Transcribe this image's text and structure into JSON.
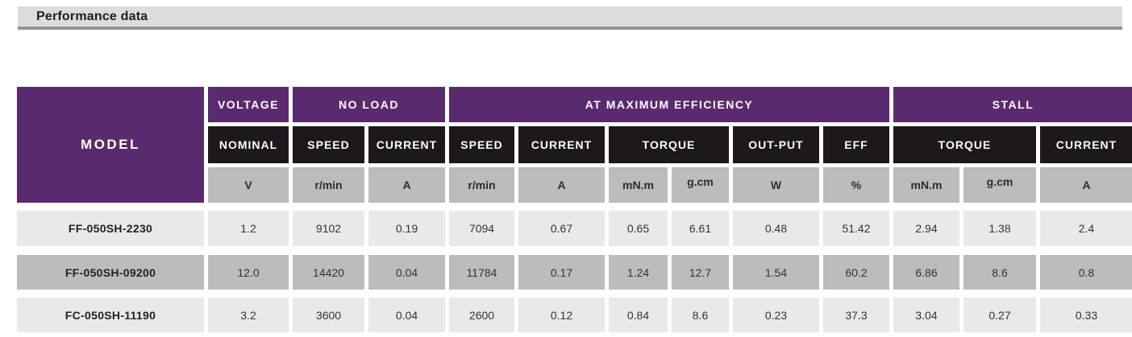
{
  "page": {
    "title": "Performance data"
  },
  "colors": {
    "header_purple": "#5a2a6e",
    "header_black": "#1c181c",
    "unit_gray": "#bcbcbc",
    "row_light": "#e9e9e9",
    "row_mid": "#bcbcbc",
    "title_bar_bg": "#dcdcdc",
    "title_bar_rule": "#8e949e"
  },
  "table": {
    "model_header": "MODEL",
    "groups": {
      "voltage": "VOLTAGE",
      "no_load": "NO LOAD",
      "max_efficiency": "AT MAXIMUM EFFICIENCY",
      "stall": "STALL"
    },
    "subheaders": {
      "nominal": "NOMINAL",
      "speed_noload": "SPEED",
      "current_noload": "CURRENT",
      "speed_maxeff": "SPEED",
      "current_maxeff": "CURRENT",
      "torque_maxeff": "TORQUE",
      "output": "OUT-PUT",
      "eff": "EFF",
      "torque_stall": "TORQUE",
      "current_stall": "CURRENT"
    },
    "units": [
      "V",
      "r/min",
      "A",
      "r/min",
      "A",
      "mN.m",
      "g.cm",
      "W",
      "%",
      "mN.m",
      "g.cm",
      "A"
    ],
    "rows": [
      {
        "model": "FF-050SH-2230",
        "values": [
          "1.2",
          "9102",
          "0.19",
          "7094",
          "0.67",
          "0.65",
          "6.61",
          "0.48",
          "51.42",
          "2.94",
          "1.38",
          "2.4"
        ]
      },
      {
        "model": "FF-050SH-09200",
        "values": [
          "12.0",
          "14420",
          "0.04",
          "11784",
          "0.17",
          "1.24",
          "12.7",
          "1.54",
          "60.2",
          "6.86",
          "8.6",
          "0.8"
        ]
      },
      {
        "model": "FC-050SH-11190",
        "values": [
          "3.2",
          "3600",
          "0.04",
          "2600",
          "0.12",
          "0.84",
          "8.6",
          "0.23",
          "37.3",
          "3.04",
          "0.27",
          "0.33"
        ]
      }
    ]
  }
}
